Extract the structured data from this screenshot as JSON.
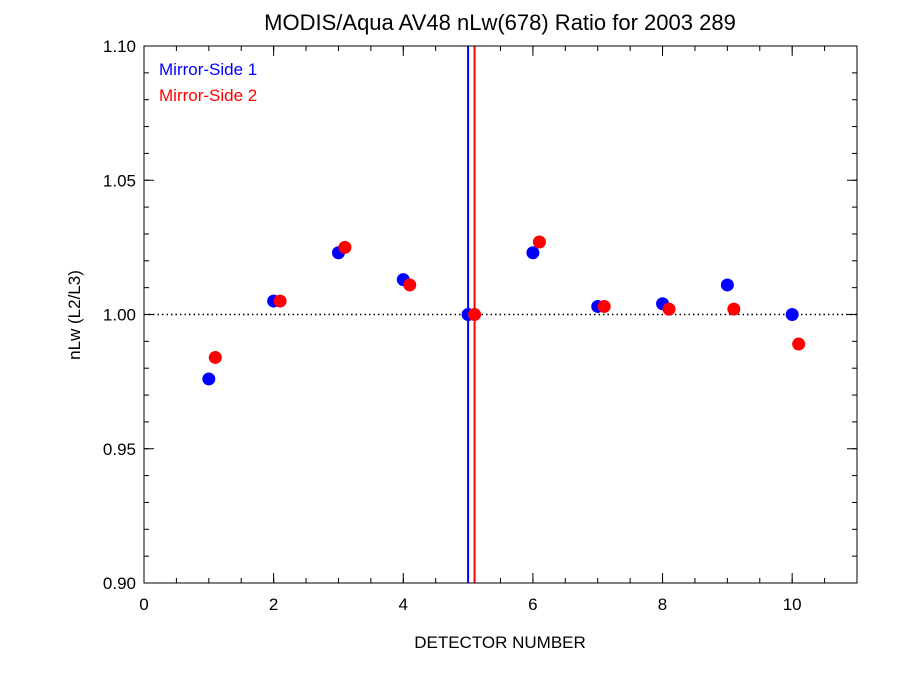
{
  "chart_data": {
    "type": "scatter",
    "title": "MODIS/Aqua AV48 nLw(678) Ratio for 2003 289",
    "xlabel": "DETECTOR NUMBER",
    "ylabel": "nLw (L2/L3)",
    "xlim": [
      0,
      11
    ],
    "ylim": [
      0.9,
      1.1
    ],
    "x_ticks": [
      0,
      2,
      4,
      6,
      8,
      10
    ],
    "x_tick_labels": [
      "0",
      "2",
      "4",
      "6",
      "8",
      "10"
    ],
    "x_minor_step": 0.5,
    "y_ticks": [
      0.9,
      0.95,
      1.0,
      1.05,
      1.1
    ],
    "y_tick_labels": [
      "0.90",
      "0.95",
      "1.00",
      "1.05",
      "1.10"
    ],
    "y_minor_step": 0.01,
    "reference_line": {
      "y": 1.0,
      "style": "dotted",
      "color": "#000000"
    },
    "vertical_lines": [
      {
        "x": 5.0,
        "color": "#0000ff"
      },
      {
        "x": 5.1,
        "color": "#ff0000"
      }
    ],
    "legend_placement": "top-left",
    "series": [
      {
        "name": "Mirror-Side 1",
        "color": "#0000ff",
        "x": [
          1,
          2,
          3,
          4,
          5,
          6,
          7,
          8,
          9,
          10
        ],
        "y": [
          0.976,
          1.005,
          1.023,
          1.013,
          1.0,
          1.023,
          1.003,
          1.004,
          1.011,
          1.0
        ]
      },
      {
        "name": "Mirror-Side 2",
        "color": "#ff0000",
        "x": [
          1.1,
          2.1,
          3.1,
          4.1,
          5.1,
          6.1,
          7.1,
          8.1,
          9.1,
          10.1
        ],
        "y": [
          0.984,
          1.005,
          1.025,
          1.011,
          1.0,
          1.027,
          1.003,
          1.002,
          1.002,
          0.989
        ]
      }
    ]
  }
}
